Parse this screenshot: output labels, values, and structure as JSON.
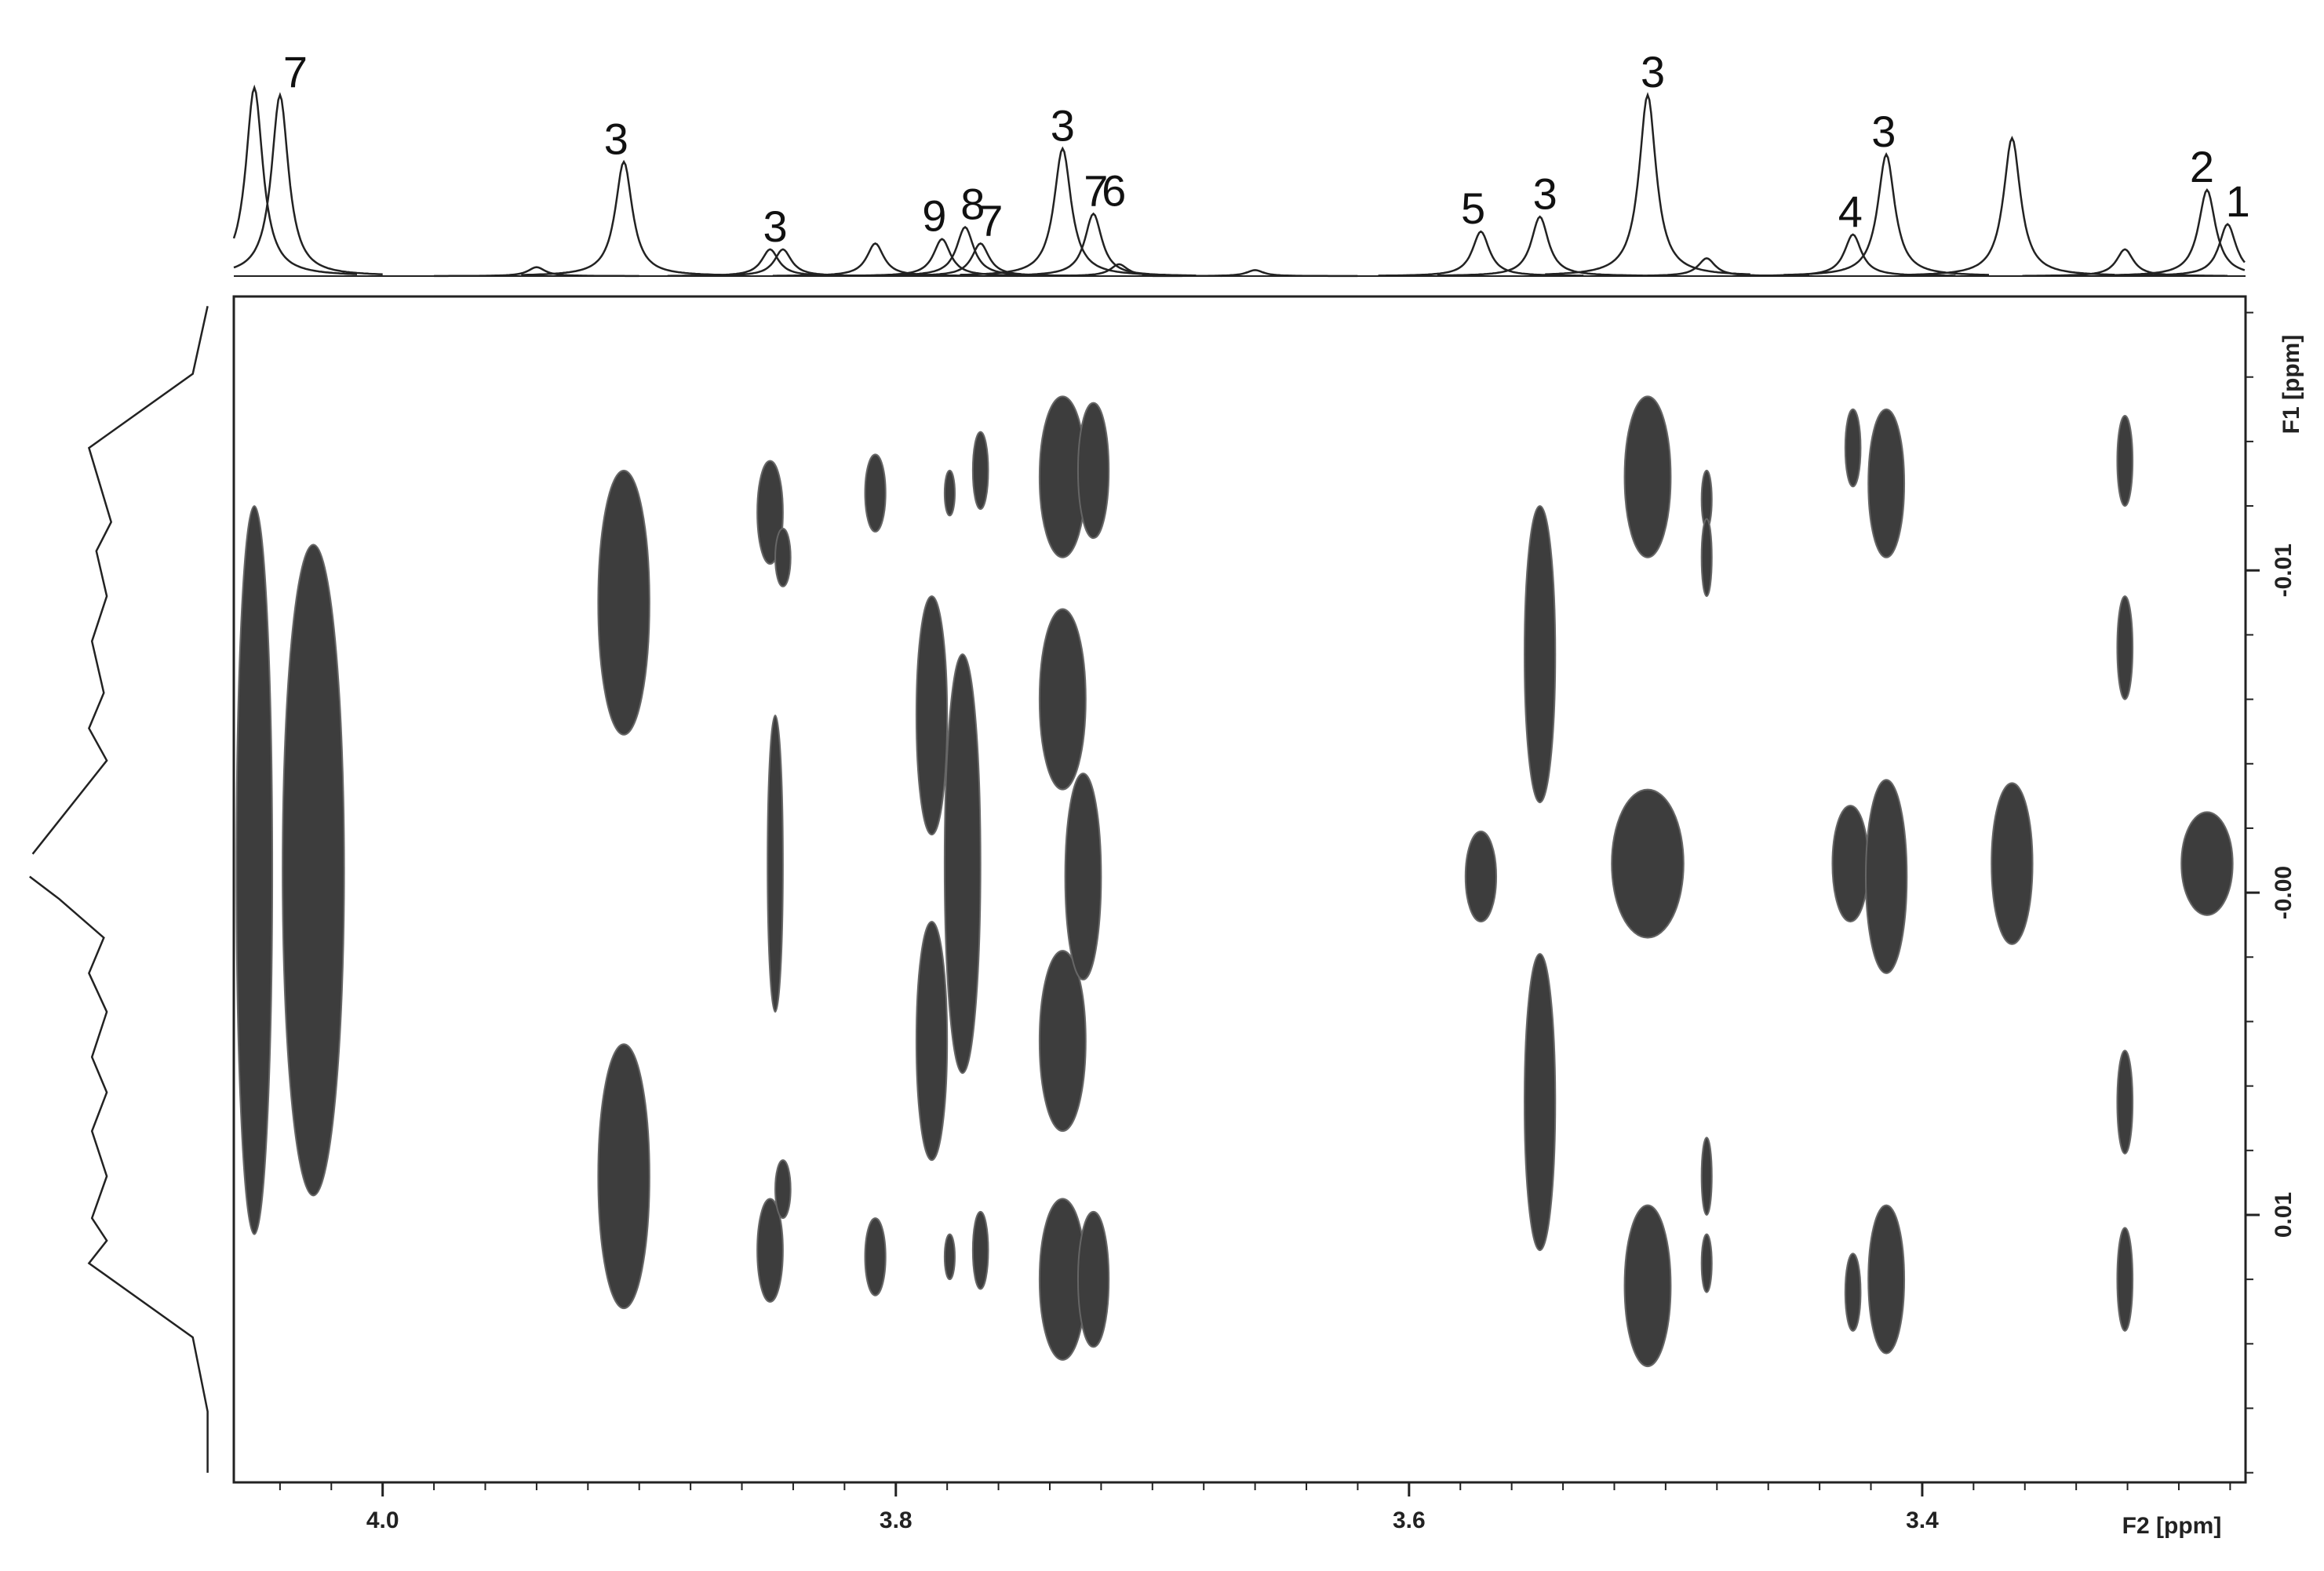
{
  "chart_data": {
    "type": "contour",
    "x_label": "F2 [ppm]",
    "y_label": "F1 [ppm]",
    "xlim": [
      4.058,
      3.274
    ],
    "ylim": [
      -0.0185,
      0.0183
    ],
    "xticks": [
      {
        "value": 4.0,
        "label": "4.0"
      },
      3.8,
      3.6,
      3.4
    ],
    "xminor_ticks": [
      4.04,
      4.02,
      3.98,
      3.96,
      3.94,
      3.92,
      3.9,
      3.88,
      3.86,
      3.84,
      3.82,
      3.78,
      3.76,
      3.74,
      3.72,
      3.7,
      3.68,
      3.66,
      3.64,
      3.62,
      3.58,
      3.56,
      3.54,
      3.52,
      3.5,
      3.48,
      3.46,
      3.44,
      3.42,
      3.38,
      3.36,
      3.34,
      3.32,
      3.3,
      3.28
    ],
    "yticks": [
      -0.01,
      {
        "value": 0,
        "label": "-0.00"
      },
      0.01
    ],
    "yminor_ticks": [
      -0.018,
      -0.016,
      -0.014,
      -0.012,
      -0.008,
      -0.006,
      -0.004,
      -0.002,
      0.002,
      0.004,
      0.006,
      0.008,
      0.012,
      0.014,
      0.016,
      0.018
    ],
    "color": "#3d3d3d",
    "cross_peaks": {
      "x": [
        4.05,
        4.027,
        3.906,
        3.906,
        3.849,
        3.844,
        3.849,
        3.844,
        3.847,
        3.808,
        3.808,
        3.779,
        3.767,
        3.779,
        3.767,
        3.786,
        3.786,
        3.774,
        3.735,
        3.723,
        3.735,
        3.723,
        3.735,
        3.735,
        3.727,
        3.572,
        3.549,
        3.549,
        3.507,
        3.507,
        3.507,
        3.484,
        3.484,
        3.484,
        3.484,
        3.427,
        3.414,
        3.427,
        3.414,
        3.428,
        3.414,
        3.365,
        3.321,
        3.321,
        3.321,
        3.321,
        3.289
      ],
      "y": [
        -0.0007,
        -0.0007,
        -0.009,
        0.0088,
        -0.0118,
        -0.0104,
        0.0111,
        0.0092,
        -0.0009,
        -0.0124,
        0.0113,
        -0.0124,
        -0.0131,
        0.0113,
        0.0111,
        -0.0055,
        0.0046,
        -0.0009,
        -0.0129,
        -0.0131,
        0.012,
        0.012,
        -0.006,
        0.0046,
        -0.0005,
        -0.0005,
        -0.0074,
        0.0065,
        -0.0129,
        0.0122,
        -0.0009,
        -0.0122,
        -0.0104,
        0.0088,
        0.0115,
        -0.0138,
        -0.0127,
        0.0124,
        0.012,
        -0.0009,
        -0.0005,
        -0.0009,
        -0.0134,
        -0.0076,
        0.0065,
        0.012,
        -0.0009
      ],
      "x_width": [
        0.007,
        0.012,
        0.01,
        0.01,
        0.005,
        0.003,
        0.005,
        0.003,
        0.003,
        0.004,
        0.004,
        0.002,
        0.003,
        0.002,
        0.003,
        0.006,
        0.006,
        0.007,
        0.009,
        0.006,
        0.009,
        0.006,
        0.009,
        0.009,
        0.007,
        0.006,
        0.006,
        0.006,
        0.009,
        0.009,
        0.014,
        0.002,
        0.002,
        0.002,
        0.002,
        0.003,
        0.007,
        0.003,
        0.007,
        0.007,
        0.008,
        0.008,
        0.003,
        0.003,
        0.003,
        0.003,
        0.01
      ],
      "y_width": [
        0.0113,
        0.0101,
        0.0041,
        0.0041,
        0.0016,
        0.0009,
        0.0016,
        0.0009,
        0.0046,
        0.0012,
        0.0012,
        0.0007,
        0.0012,
        0.0007,
        0.0012,
        0.0037,
        0.0037,
        0.0065,
        0.0025,
        0.0021,
        0.0025,
        0.0021,
        0.0028,
        0.0028,
        0.0032,
        0.0014,
        0.0046,
        0.0046,
        0.0025,
        0.0025,
        0.0023,
        0.0009,
        0.0012,
        0.0012,
        0.0009,
        0.0012,
        0.0023,
        0.0012,
        0.0023,
        0.0018,
        0.003,
        0.0025,
        0.0014,
        0.0016,
        0.0016,
        0.0016,
        0.0016
      ]
    },
    "top_trace": {
      "ylim": [
        0,
        130
      ],
      "linewidth": 0.004,
      "x": [
        4.05,
        4.04,
        3.94,
        3.906,
        3.849,
        3.844,
        3.808,
        3.782,
        3.773,
        3.767,
        3.735,
        3.723,
        3.713,
        3.66,
        3.572,
        3.549,
        3.507,
        3.484,
        3.427,
        3.414,
        3.365,
        3.321,
        3.289,
        3.281
      ],
      "heights": [
        127,
        122,
        6,
        77,
        18,
        18,
        22,
        25,
        33,
        22,
        86,
        42,
        8,
        4,
        30,
        40,
        122,
        12,
        28,
        82,
        93,
        18,
        58,
        35
      ],
      "labels": [
        {
          "text": "7",
          "x": 4.034
        },
        {
          "text": "3",
          "x": 3.909
        },
        {
          "text": "3",
          "x": 3.847
        },
        {
          "text": "9",
          "x": 3.785
        },
        {
          "text": "8",
          "x": 3.77
        },
        {
          "text": "7",
          "x": 3.763
        },
        {
          "text": "3",
          "x": 3.735
        },
        {
          "text": "7",
          "x": 3.722
        },
        {
          "text": "6",
          "x": 3.715
        },
        {
          "text": "5",
          "x": 3.575
        },
        {
          "text": "3",
          "x": 3.547
        },
        {
          "text": "3",
          "x": 3.505
        },
        {
          "text": "4",
          "x": 3.428
        },
        {
          "text": "3",
          "x": 3.415
        },
        {
          "text": "2",
          "x": 3.291
        },
        {
          "text": "1",
          "x": 3.277
        }
      ]
    },
    "f1_projection": {
      "xlim": [
        0,
        145
      ],
      "y": [
        -0.0182,
        -0.0161,
        -0.0138,
        -0.0115,
        -0.0106,
        -0.0092,
        -0.0078,
        -0.0062,
        -0.0051,
        -0.0041,
        -0.0012,
        -0.0008,
        -0.0005,
        0.0002,
        0.0014,
        0.0025,
        0.0037,
        0.0051,
        0.0062,
        0.0074,
        0.0088,
        0.0101,
        0.0108,
        0.0115,
        0.0138,
        0.0161,
        0.018
      ],
      "values": [
        5,
        15,
        85,
        70,
        80,
        73,
        83,
        75,
        85,
        73,
        123,
        null,
        125,
        105,
        75,
        85,
        73,
        83,
        73,
        83,
        73,
        83,
        73,
        85,
        15,
        5,
        5
      ]
    }
  }
}
